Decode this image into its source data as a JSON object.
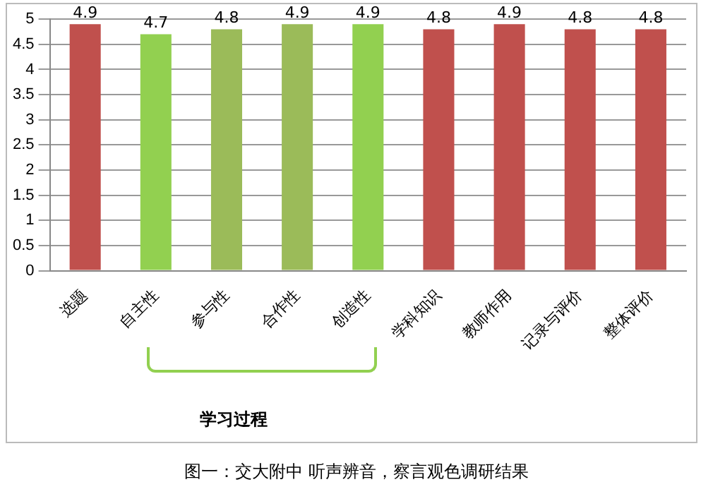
{
  "chart_data": {
    "type": "bar",
    "categories": [
      "选题",
      "自主性",
      "参与性",
      "合作性",
      "创造性",
      "学科知识",
      "教师作用",
      "记录与评价",
      "整体评价"
    ],
    "values": [
      4.9,
      4.7,
      4.8,
      4.9,
      4.9,
      4.8,
      4.9,
      4.8,
      4.8
    ],
    "colors": [
      "#c0504d",
      "#92d050",
      "#9bbb59",
      "#9bbb59",
      "#92d050",
      "#c0504d",
      "#c0504d",
      "#c0504d",
      "#c0504d"
    ],
    "ylim": [
      0,
      5
    ],
    "yticks": [
      0,
      0.5,
      1,
      1.5,
      2,
      2.5,
      3,
      3.5,
      4,
      4.5,
      5
    ],
    "grid": "y",
    "data_labels": true,
    "legend": false,
    "annotations": [
      "学习过程",
      "图一：交大附中 听声辨音，察言观色调研结果"
    ]
  }
}
